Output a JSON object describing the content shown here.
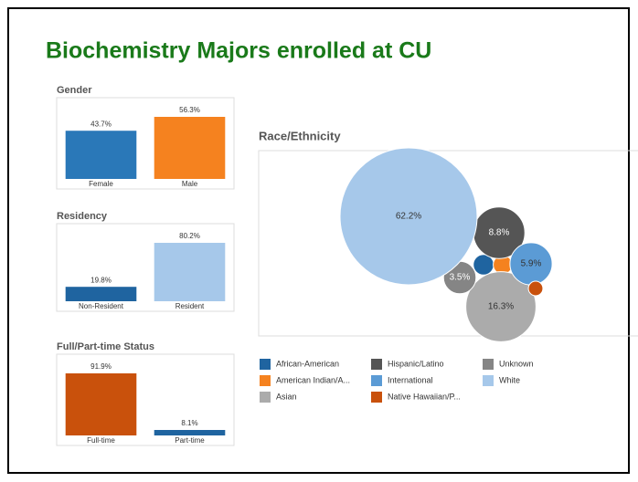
{
  "title": "Biochemistry Majors enrolled at CU",
  "chart_data": [
    {
      "type": "bar",
      "title": "Gender",
      "categories": [
        "Female",
        "Male"
      ],
      "values": [
        43.7,
        56.3
      ],
      "value_labels": [
        "43.7%",
        "56.3%"
      ],
      "colors": [
        "#2a78b8",
        "#f5821f"
      ]
    },
    {
      "type": "bar",
      "title": "Residency",
      "categories": [
        "Non-Resident",
        "Resident"
      ],
      "values": [
        19.8,
        80.2
      ],
      "value_labels": [
        "19.8%",
        "80.2%"
      ],
      "colors": [
        "#1f64a0",
        "#a6c8ea"
      ]
    },
    {
      "type": "bar",
      "title": "Full/Part-time Status",
      "categories": [
        "Full-time",
        "Part-time"
      ],
      "values": [
        91.9,
        8.1
      ],
      "value_labels": [
        "91.9%",
        "8.1%"
      ],
      "colors": [
        "#c9510c",
        "#1f64a0"
      ]
    },
    {
      "type": "bubble",
      "title": "Race/Ethnicity",
      "categories": [
        "African-American",
        "American Indian/A...",
        "Asian",
        "Hispanic/Latino",
        "International",
        "Native Hawaiian/P...",
        "Unknown",
        "White"
      ],
      "values": [
        1.4,
        1.2,
        16.3,
        8.8,
        5.9,
        0.7,
        3.5,
        62.2
      ],
      "value_labels": [
        null,
        null,
        "16.3%",
        "8.8%",
        "5.9%",
        null,
        "3.5%",
        "62.2%"
      ],
      "colors": [
        "#1f64a0",
        "#f5821f",
        "#ababab",
        "#555555",
        "#5b9bd5",
        "#c9510c",
        "#858585",
        "#a6c8ea"
      ]
    }
  ]
}
